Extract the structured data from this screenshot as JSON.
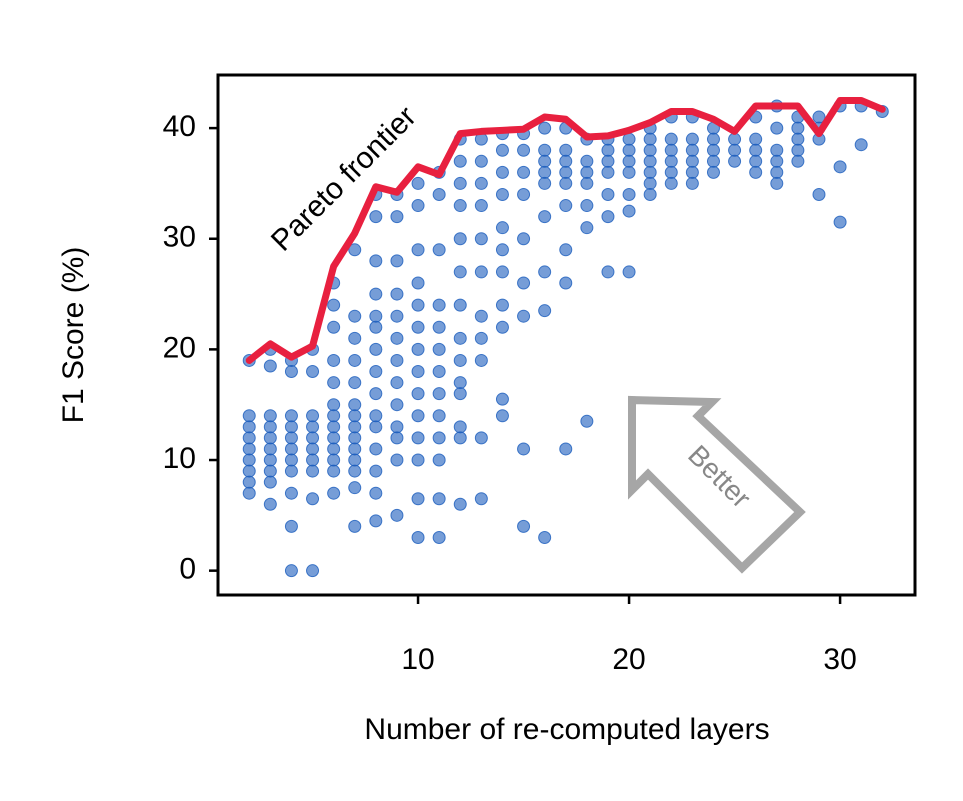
{
  "chart_data": {
    "type": "scatter",
    "xlabel": "Number of re-computed layers",
    "ylabel": "F1 Score (%)",
    "annotations": [
      "Pareto frontier",
      "Better"
    ],
    "xlim": [
      0.52,
      33.55
    ],
    "ylim": [
      -2.2,
      44.8
    ],
    "xticks": [
      10,
      20,
      30
    ],
    "yticks": [
      0,
      10,
      20,
      30,
      40
    ],
    "grid": false,
    "series": [
      {
        "type": "scatter",
        "color": "#1a5cbd",
        "x": [
          2,
          2,
          2,
          2,
          2,
          2,
          2,
          2,
          2,
          3,
          3,
          3,
          3,
          3,
          3,
          3,
          3,
          3,
          3,
          4,
          4,
          4,
          4,
          4,
          4,
          4,
          4,
          4,
          4,
          4,
          5,
          5,
          5,
          5,
          5,
          5,
          5,
          5,
          5,
          5,
          6,
          6,
          6,
          6,
          6,
          6,
          6,
          6,
          6,
          6,
          6,
          6,
          6,
          7,
          7,
          7,
          7,
          7,
          7,
          7,
          7,
          7,
          7,
          7,
          7,
          7,
          7,
          8,
          8,
          8,
          8,
          8,
          8,
          8,
          8,
          8,
          8,
          8,
          8,
          8,
          8,
          8,
          9,
          9,
          9,
          9,
          9,
          9,
          9,
          9,
          9,
          9,
          9,
          9,
          9,
          10,
          10,
          10,
          10,
          10,
          10,
          10,
          10,
          10,
          10,
          10,
          10,
          10,
          10,
          11,
          11,
          11,
          11,
          11,
          11,
          11,
          11,
          11,
          11,
          11,
          11,
          11,
          12,
          12,
          12,
          12,
          12,
          12,
          12,
          12,
          12,
          12,
          12,
          12,
          12,
          12,
          13,
          13,
          13,
          13,
          13,
          13,
          13,
          13,
          13,
          13,
          13,
          14,
          14,
          14,
          14,
          14,
          14,
          14,
          14,
          14,
          14,
          14,
          15,
          15,
          15,
          15,
          15,
          15,
          15,
          15,
          15,
          16,
          16,
          16,
          16,
          16,
          16,
          16,
          16,
          16,
          17,
          17,
          17,
          17,
          17,
          17,
          17,
          17,
          17,
          18,
          18,
          18,
          18,
          18,
          18,
          18,
          19,
          19,
          19,
          19,
          19,
          19,
          19,
          20,
          20,
          20,
          20,
          20,
          20,
          20,
          21,
          21,
          21,
          21,
          21,
          21,
          21,
          22,
          22,
          22,
          22,
          22,
          22,
          23,
          23,
          23,
          23,
          23,
          23,
          24,
          24,
          24,
          24,
          24,
          25,
          25,
          25,
          26,
          26,
          26,
          26,
          26,
          27,
          27,
          27,
          27,
          27,
          27,
          28,
          28,
          28,
          28,
          28,
          29,
          29,
          29,
          29,
          30,
          30,
          30,
          31,
          31,
          32
        ],
        "values": [
          7,
          8,
          9,
          10,
          11,
          12,
          13,
          14,
          19,
          6,
          8,
          9,
          10,
          11,
          12,
          13,
          14,
          18.5,
          20,
          0,
          4,
          7,
          9,
          10,
          11,
          12,
          13,
          14,
          18,
          19,
          0,
          6.5,
          9,
          10,
          11,
          12,
          13,
          14,
          18,
          20,
          7,
          9,
          10,
          11,
          12,
          13,
          14,
          15,
          17,
          19,
          22,
          24,
          26,
          4,
          7.5,
          9,
          10,
          11,
          12,
          13,
          14,
          15,
          17,
          19,
          21,
          23,
          29,
          4.5,
          7,
          9,
          11,
          13,
          14,
          16,
          18,
          20,
          22,
          23,
          25,
          28,
          32,
          34,
          5,
          10,
          12,
          13,
          15,
          17,
          19,
          21,
          23,
          25,
          28,
          32,
          34,
          3,
          6.5,
          10,
          12,
          14,
          16,
          18,
          20,
          22,
          24,
          26,
          29,
          33,
          35,
          3,
          6.5,
          10,
          12,
          14,
          16,
          18,
          20,
          22,
          24,
          29,
          34,
          36,
          6,
          12,
          13,
          16,
          17,
          19,
          21,
          24,
          27,
          30,
          33,
          35,
          37,
          39,
          6.5,
          12,
          19,
          21,
          23,
          27,
          30,
          33,
          35,
          37,
          39,
          14,
          15.5,
          22,
          24,
          27,
          29,
          31,
          34,
          36,
          38,
          39.5,
          4,
          11,
          23,
          26,
          30,
          34,
          36,
          38,
          39.5,
          3,
          23.5,
          27,
          32,
          35,
          36,
          37,
          38,
          40,
          11,
          26,
          29,
          33,
          35,
          36,
          37,
          38,
          40,
          13.5,
          31,
          33,
          35,
          36,
          37,
          39,
          27,
          32,
          34,
          36,
          37,
          38,
          39,
          27,
          32.5,
          34,
          36,
          37,
          38,
          39,
          34,
          35,
          36,
          37,
          38,
          39,
          40,
          35,
          36,
          37,
          38,
          39,
          41,
          35,
          36,
          37,
          38,
          39,
          41,
          36,
          37,
          38,
          39,
          40,
          37,
          38,
          39,
          36,
          37,
          38,
          39,
          41,
          35,
          36,
          37,
          38,
          40,
          42,
          37,
          38,
          39,
          40,
          41,
          34,
          39,
          40,
          41,
          31.5,
          36.5,
          42,
          38.5,
          42,
          41.5
        ]
      },
      {
        "type": "line",
        "color": "#e8203f",
        "x": [
          2,
          3,
          4,
          5,
          6,
          7,
          8,
          9,
          10,
          11,
          12,
          13,
          14,
          15,
          16,
          17,
          18,
          19,
          20,
          21,
          22,
          23,
          24,
          25,
          26,
          27,
          28,
          29,
          30,
          31,
          32
        ],
        "values": [
          19,
          20.5,
          19.3,
          20.3,
          27.5,
          30.5,
          34.7,
          34.2,
          36.5,
          35.8,
          39.5,
          39.7,
          39.8,
          39.9,
          41,
          40.8,
          39.2,
          39.3,
          39.8,
          40.5,
          41.5,
          41.5,
          40.8,
          39.7,
          42,
          42,
          42,
          39.5,
          42.5,
          42.5,
          41.7
        ]
      }
    ]
  }
}
